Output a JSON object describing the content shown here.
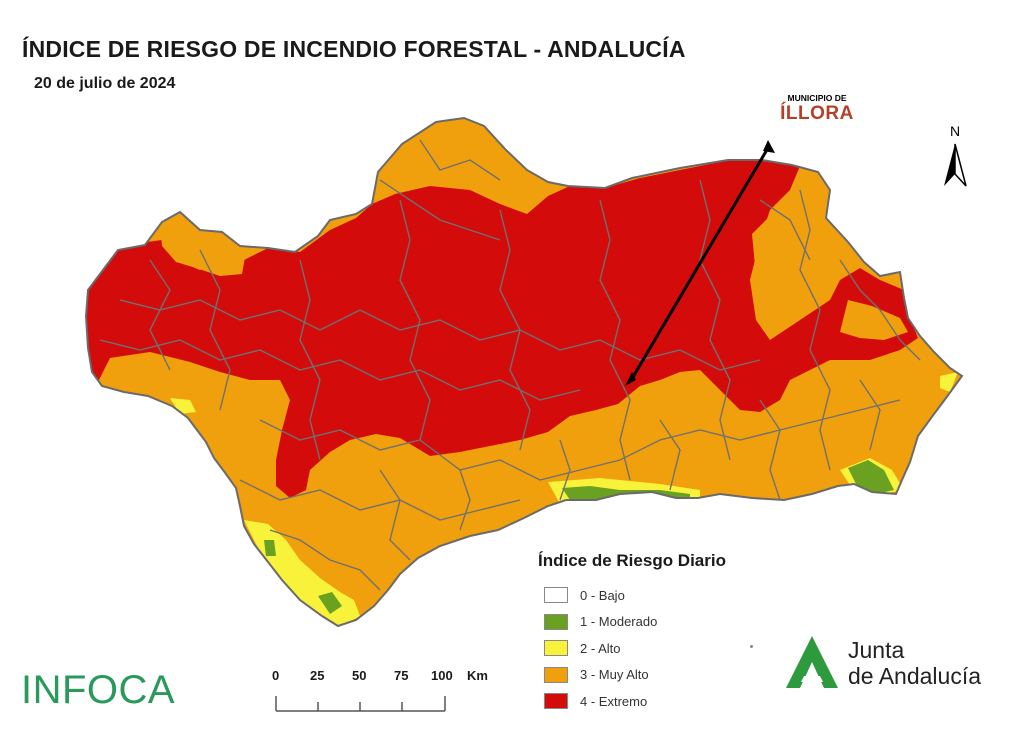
{
  "header": {
    "title": "ÍNDICE DE RIESGO DE INCENDIO FORESTAL - ANDALUCÍA",
    "date": "20 de julio de 2024"
  },
  "callout": {
    "prefix": "MUNICIPIO DE",
    "name": "ÍLLORA"
  },
  "north_arrow": {
    "letter": "N"
  },
  "legend": {
    "title": "Índice de Riesgo Diario",
    "items": [
      {
        "label": "0 - Bajo",
        "color": "#ffffff"
      },
      {
        "label": "1 - Moderado",
        "color": "#6aa121"
      },
      {
        "label": "2 - Alto",
        "color": "#f8f33a"
      },
      {
        "label": "3 - Muy Alto",
        "color": "#f0a00c"
      },
      {
        "label": "4 - Extremo",
        "color": "#d40b0b"
      }
    ]
  },
  "scale": {
    "ticks": [
      "0",
      "25",
      "50",
      "75",
      "100"
    ],
    "unit": "Km"
  },
  "logos": {
    "infoca": "INFOCA",
    "junta_line1": "Junta",
    "junta_line2": "de Andalucía"
  },
  "colors": {
    "extreme": "#d40b0b",
    "very_high": "#f0a00c",
    "high": "#f8f33a",
    "moderate": "#6aa121",
    "boundaries": "#707070",
    "arrow": "#000000",
    "infoca": "#2a9a5c",
    "junta_green": "#2e9a3e"
  }
}
